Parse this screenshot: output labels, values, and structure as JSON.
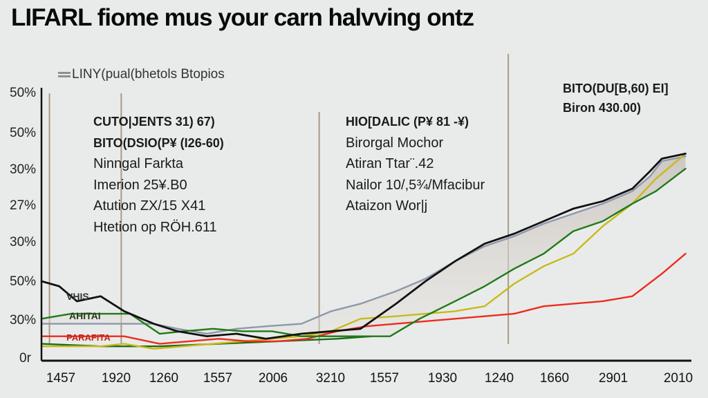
{
  "title": "LIFARL fiome mus your carn halvving ontz",
  "legend": {
    "label": "LINY(pual(bhetols Btopios",
    "icon": "double-line-swatch"
  },
  "chart_data": {
    "type": "line",
    "title": "LIFARL fiome mus your carn halvving ontz",
    "xlabel": "",
    "ylabel": "",
    "grid": false,
    "legend_position": "top-left",
    "y_tick_labels": [
      "50%",
      "50%",
      "30%",
      "27%",
      "30%",
      "50%",
      "30%",
      "0r"
    ],
    "x_tick_labels": [
      "1457",
      "1920",
      "1260",
      "1557",
      "2006",
      "3210",
      "1557",
      "1930",
      "1240",
      "1660",
      "2901",
      "2010"
    ],
    "ylim": [
      0,
      100
    ],
    "x_range": [
      0,
      11
    ],
    "series": [
      {
        "name": "Black",
        "color": "#111111",
        "x": [
          0,
          0.3,
          0.6,
          1,
          1.4,
          1.9,
          2.3,
          2.8,
          3.3,
          3.8,
          4.4,
          4.9,
          5.4,
          6,
          6.5,
          7,
          7.5,
          8,
          8.5,
          9,
          9.5,
          10,
          10.3,
          10.5,
          10.9
        ],
        "values": [
          29,
          27,
          21,
          23,
          17,
          12,
          9,
          7,
          8,
          6,
          8,
          9,
          10,
          20,
          29,
          37,
          44,
          48,
          53,
          58,
          61,
          66,
          73,
          78,
          80
        ]
      },
      {
        "name": "Grey band",
        "color": "#8d98aa",
        "x": [
          0,
          0.6,
          1,
          1.4,
          1.9,
          2.3,
          2.8,
          3.3,
          3.8,
          4.4,
          4.9,
          5.4,
          6,
          6.5,
          7,
          7.5,
          8,
          8.5,
          9,
          9.5,
          10,
          10.3,
          10.5,
          10.9
        ],
        "values": [
          12,
          12,
          12,
          12,
          12,
          10,
          8,
          10,
          11,
          12,
          17,
          20,
          25,
          30,
          37,
          43,
          47,
          52,
          56,
          60,
          65,
          71,
          77,
          79
        ]
      },
      {
        "name": "Green",
        "color": "#1f7a17",
        "x": [
          0,
          0.5,
          1,
          1.5,
          2,
          2.4,
          2.9,
          3.4,
          3.9,
          4.4,
          4.9,
          5.4,
          5.9,
          6.4,
          7,
          7.5,
          8,
          8.5,
          9,
          9.5,
          10,
          10.4,
          10.9
        ],
        "values": [
          14,
          16,
          16,
          16,
          8,
          9,
          10,
          9,
          9,
          7,
          7,
          7,
          7,
          14,
          21,
          27,
          34,
          40,
          49,
          53,
          60,
          65,
          74
        ]
      },
      {
        "name": "Yellow",
        "color": "#c8b91a",
        "x": [
          0,
          1,
          1.4,
          1.9,
          2.4,
          2.9,
          3.4,
          3.9,
          4.4,
          4.9,
          5.4,
          6,
          6.5,
          7,
          7.5,
          8,
          8.5,
          9,
          9.5,
          10,
          10.4,
          10.9
        ],
        "values": [
          3,
          3,
          4,
          2,
          3,
          4,
          5,
          6,
          7,
          9,
          14,
          15,
          16,
          17,
          19,
          28,
          35,
          40,
          51,
          60,
          70,
          80
        ]
      },
      {
        "name": "Red",
        "color": "#ee2b1e",
        "x": [
          0,
          0.8,
          1.4,
          2,
          2.5,
          3,
          3.5,
          4,
          4.5,
          5,
          5.5,
          6,
          6.5,
          7,
          7.5,
          8,
          8.5,
          9,
          9.5,
          10,
          10.5,
          10.9
        ],
        "values": [
          7,
          7,
          7,
          4,
          5,
          6,
          5,
          5,
          6,
          9,
          11,
          12,
          13,
          14,
          15,
          16,
          19,
          20,
          21,
          23,
          32,
          40
        ]
      },
      {
        "name": "Dark green",
        "color": "#1d6a14",
        "x": [
          0,
          1,
          2,
          3,
          4,
          5,
          5.6
        ],
        "values": [
          4,
          3,
          3,
          4,
          5,
          6,
          7
        ]
      }
    ],
    "vertical_markers": [
      0.1,
      1.35,
      4.7,
      7.9
    ],
    "annotations": [
      {
        "lines": [
          "CUTO|JENTS 31) 67)",
          "BITO(DSIO(P¥ (I26-60)",
          "Ninngal Farkta",
          "Imerion 25¥.B0",
          "Atution ZX/15 X41",
          "Htetion op RÖH.611"
        ]
      },
      {
        "lines": [
          "HIO[DALIC (P¥ 81 -¥)",
          "Birorgal Mochor",
          "Atiran Ttar¨.42",
          "Nailor 10/,5¾/Mfacibur",
          "Ataizon Wor|j"
        ]
      },
      {
        "lines": [
          "BITO(DU[B,60) EI]",
          "Biron 430.00)"
        ]
      }
    ],
    "inline_labels": [
      "VHIS",
      "AHITAI",
      "PARAFITA"
    ]
  }
}
